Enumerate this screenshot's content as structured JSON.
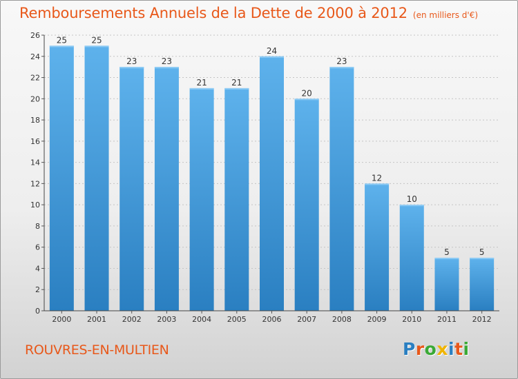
{
  "header": {
    "title": "Remboursements Annuels de la Dette de 2000 à 2012",
    "unit": "(en milliers d'€)"
  },
  "footer": {
    "place": "ROUVRES-EN-MULTIEN",
    "logo_text": "Proxiti"
  },
  "colors": {
    "title": "#e8581a",
    "bar_top": "#5eb2ec",
    "bar_bottom": "#2a7fc1",
    "logo": [
      "#2a7fc1",
      "#e8581a",
      "#3aa935",
      "#f0b400",
      "#2a7fc1",
      "#e8581a",
      "#3aa935"
    ]
  },
  "chart_data": {
    "type": "bar",
    "title": "Remboursements Annuels de la Dette de 2000 à 2012",
    "subtitle": "(en milliers d'€)",
    "xlabel": "",
    "ylabel": "",
    "categories": [
      "2000",
      "2001",
      "2002",
      "2003",
      "2004",
      "2005",
      "2006",
      "2007",
      "2008",
      "2009",
      "2010",
      "2011",
      "2012"
    ],
    "values": [
      25,
      25,
      23,
      23,
      21,
      21,
      24,
      20,
      23,
      12,
      10,
      5,
      5
    ],
    "ylim": [
      0,
      26
    ],
    "yticks": [
      0,
      2,
      4,
      6,
      8,
      10,
      12,
      14,
      16,
      18,
      20,
      22,
      24,
      26
    ],
    "grid": true,
    "legend": "none"
  }
}
